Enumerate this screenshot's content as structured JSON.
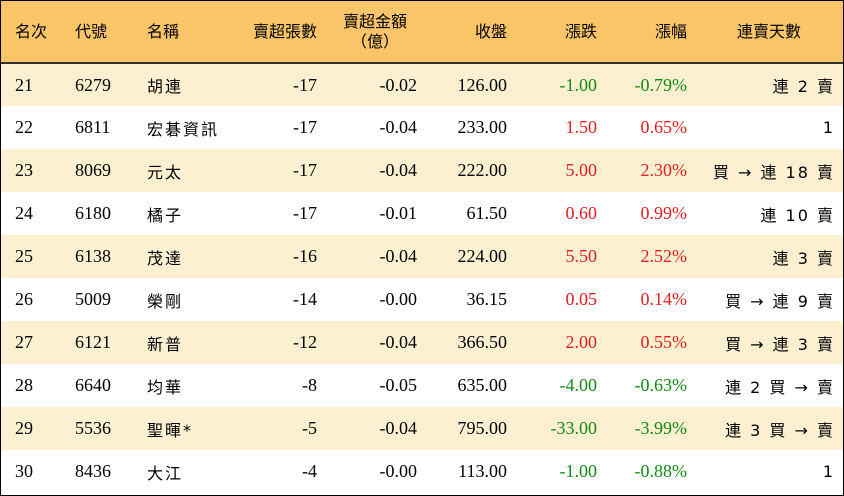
{
  "headers": {
    "rank": "名次",
    "code": "代號",
    "name": "名稱",
    "sell_lots": "賣超張數",
    "sell_amount_line1": "賣超金額",
    "sell_amount_line2": "（億）",
    "close": "收盤",
    "change": "漲跌",
    "change_pct": "漲幅",
    "streak": "連賣天數"
  },
  "rows": [
    {
      "rank": "21",
      "code": "6279",
      "name": "胡連",
      "sell_lots": "-17",
      "sell_amount": "-0.02",
      "close": "126.00",
      "change": "-1.00",
      "change_pct": "-0.79%",
      "dir": "down",
      "streak": "連 2 賣"
    },
    {
      "rank": "22",
      "code": "6811",
      "name": "宏碁資訊",
      "sell_lots": "-17",
      "sell_amount": "-0.04",
      "close": "233.00",
      "change": "1.50",
      "change_pct": "0.65%",
      "dir": "up",
      "streak": "1"
    },
    {
      "rank": "23",
      "code": "8069",
      "name": "元太",
      "sell_lots": "-17",
      "sell_amount": "-0.04",
      "close": "222.00",
      "change": "5.00",
      "change_pct": "2.30%",
      "dir": "up",
      "streak": "買 → 連 18 賣"
    },
    {
      "rank": "24",
      "code": "6180",
      "name": "橘子",
      "sell_lots": "-17",
      "sell_amount": "-0.01",
      "close": "61.50",
      "change": "0.60",
      "change_pct": "0.99%",
      "dir": "up",
      "streak": "連 10 賣"
    },
    {
      "rank": "25",
      "code": "6138",
      "name": "茂達",
      "sell_lots": "-16",
      "sell_amount": "-0.04",
      "close": "224.00",
      "change": "5.50",
      "change_pct": "2.52%",
      "dir": "up",
      "streak": "連 3 賣"
    },
    {
      "rank": "26",
      "code": "5009",
      "name": "榮剛",
      "sell_lots": "-14",
      "sell_amount": "-0.00",
      "close": "36.15",
      "change": "0.05",
      "change_pct": "0.14%",
      "dir": "up",
      "streak": "買 → 連 9 賣"
    },
    {
      "rank": "27",
      "code": "6121",
      "name": "新普",
      "sell_lots": "-12",
      "sell_amount": "-0.04",
      "close": "366.50",
      "change": "2.00",
      "change_pct": "0.55%",
      "dir": "up",
      "streak": "買 → 連 3 賣"
    },
    {
      "rank": "28",
      "code": "6640",
      "name": "均華",
      "sell_lots": "-8",
      "sell_amount": "-0.05",
      "close": "635.00",
      "change": "-4.00",
      "change_pct": "-0.63%",
      "dir": "down",
      "streak": "連 2 買 → 賣"
    },
    {
      "rank": "29",
      "code": "5536",
      "name": "聖暉*",
      "sell_lots": "-5",
      "sell_amount": "-0.04",
      "close": "795.00",
      "change": "-33.00",
      "change_pct": "-3.99%",
      "dir": "down",
      "streak": "連 3 買 → 賣"
    },
    {
      "rank": "30",
      "code": "8436",
      "name": "大江",
      "sell_lots": "-4",
      "sell_amount": "-0.00",
      "close": "113.00",
      "change": "-1.00",
      "change_pct": "-0.88%",
      "dir": "down",
      "streak": "1"
    }
  ],
  "colors": {
    "header_bg": "#f9c568",
    "stripe_bg": "#fdf0d1",
    "up": "#e02020",
    "down": "#138a13"
  }
}
